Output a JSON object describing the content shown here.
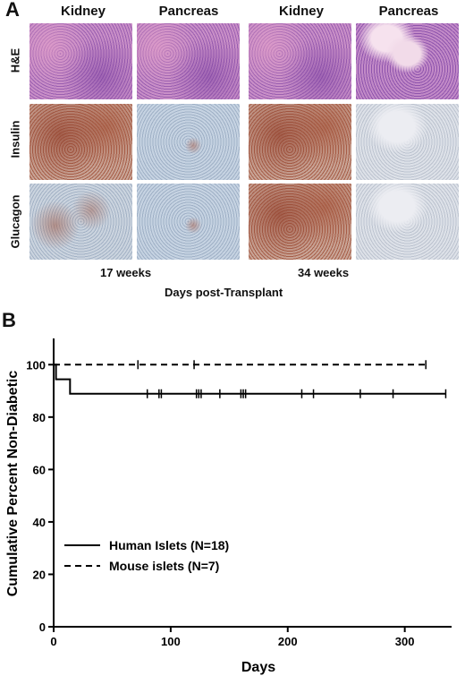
{
  "panel_a": {
    "letter": "A",
    "columns": [
      "Kidney",
      "Pancreas",
      "Kidney",
      "Pancreas"
    ],
    "rows": [
      "H&E",
      "Insulin",
      "Glucagon"
    ],
    "timepoints": [
      "17 weeks",
      "34 weeks"
    ],
    "caption": "Days post-Transplant"
  },
  "panel_b": {
    "letter": "B"
  },
  "chart_data": {
    "type": "line",
    "subtype": "kaplan-meier-step",
    "xlabel": "Days",
    "ylabel": "Cumulative Percent Non-Diabetic",
    "xlim": [
      0,
      340
    ],
    "ylim": [
      0,
      110
    ],
    "xticks": [
      0,
      100,
      200,
      300
    ],
    "yticks": [
      0,
      20,
      40,
      60,
      80,
      100
    ],
    "grid": false,
    "legend_position": "bottom-left",
    "series": [
      {
        "name": "Human Islets (N=18)",
        "style": "solid",
        "steps": [
          [
            0,
            100
          ],
          [
            2,
            94.4
          ],
          [
            14,
            88.9
          ],
          [
            335,
            88.9
          ]
        ],
        "censor_x": [
          80,
          90,
          92,
          122,
          124,
          126,
          142,
          160,
          162,
          164,
          212,
          222,
          262,
          290,
          335
        ]
      },
      {
        "name": "Mouse islets (N=7)",
        "style": "dashed",
        "steps": [
          [
            0,
            100
          ],
          [
            320,
            100
          ]
        ],
        "censor_x": [
          72,
          120,
          318
        ]
      }
    ]
  }
}
